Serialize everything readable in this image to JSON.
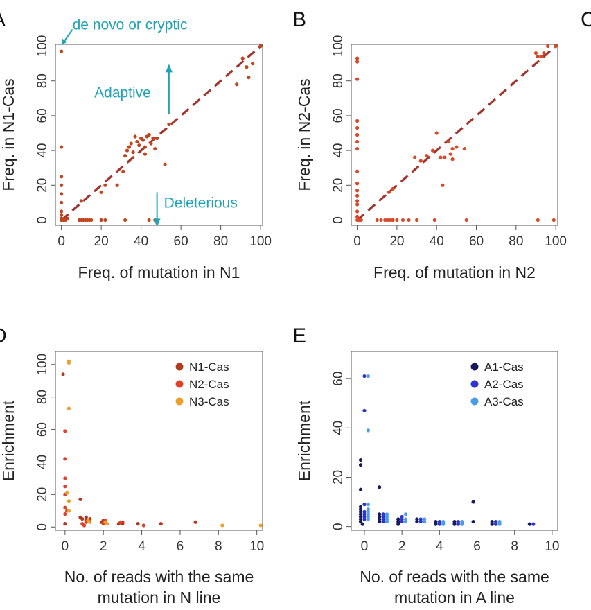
{
  "chart_data": [
    {
      "panel": "A",
      "type": "scatter",
      "xlabel": "Freq. of mutation in N1",
      "ylabel": "Freq. in N1-Cas",
      "xlim": [
        -3,
        101
      ],
      "ylim": [
        -3,
        101
      ],
      "xticks": [
        0,
        20,
        40,
        60,
        80,
        100
      ],
      "yticks": [
        0,
        20,
        40,
        60,
        80,
        100
      ],
      "diagonal": true,
      "colors": {
        "points": "#c0451f",
        "diagonal": "#a3332b",
        "annotation": "#22a3b5"
      },
      "annotations": [
        {
          "text": "de novo or cryptic",
          "arrow": "down-left",
          "at": [
            0,
            100
          ]
        },
        {
          "text": "Adaptive",
          "arrow": "up",
          "at": [
            54,
            61
          ]
        },
        {
          "text": "Deleterious",
          "arrow": "down",
          "at": [
            48,
            16
          ]
        }
      ],
      "points": [
        [
          0,
          97
        ],
        [
          0,
          42
        ],
        [
          0,
          25
        ],
        [
          0,
          20
        ],
        [
          0,
          15
        ],
        [
          0,
          10
        ],
        [
          0,
          5
        ],
        [
          0,
          3
        ],
        [
          0,
          1
        ],
        [
          0,
          0
        ],
        [
          1,
          0
        ],
        [
          2,
          0
        ],
        [
          3,
          1
        ],
        [
          9,
          0
        ],
        [
          10,
          0
        ],
        [
          11,
          0
        ],
        [
          12,
          0
        ],
        [
          13,
          0
        ],
        [
          14,
          0
        ],
        [
          15,
          0
        ],
        [
          20,
          0
        ],
        [
          22,
          0
        ],
        [
          32,
          0
        ],
        [
          44,
          0
        ],
        [
          47,
          0
        ],
        [
          10,
          11
        ],
        [
          20,
          16
        ],
        [
          22,
          20
        ],
        [
          28,
          20
        ],
        [
          31,
          28
        ],
        [
          32,
          37
        ],
        [
          33,
          40
        ],
        [
          34,
          42
        ],
        [
          35,
          44
        ],
        [
          36,
          39
        ],
        [
          37,
          48
        ],
        [
          38,
          45
        ],
        [
          39,
          43
        ],
        [
          40,
          47
        ],
        [
          41,
          46
        ],
        [
          42,
          42
        ],
        [
          43,
          48
        ],
        [
          44,
          49
        ],
        [
          45,
          44
        ],
        [
          46,
          47
        ],
        [
          47,
          41
        ],
        [
          48,
          47
        ],
        [
          42,
          38
        ],
        [
          52,
          32
        ],
        [
          54,
          55
        ],
        [
          88,
          78
        ],
        [
          91,
          93
        ],
        [
          93,
          88
        ],
        [
          94,
          82
        ],
        [
          96,
          90
        ],
        [
          100,
          100
        ]
      ]
    },
    {
      "panel": "B",
      "type": "scatter",
      "xlabel": "Freq. of mutation in N2",
      "ylabel": "Freq. in N2-Cas",
      "xlim": [
        -3,
        101
      ],
      "ylim": [
        -3,
        101
      ],
      "xticks": [
        0,
        20,
        40,
        60,
        80,
        100
      ],
      "yticks": [
        0,
        20,
        40,
        60,
        80,
        100
      ],
      "diagonal": true,
      "colors": {
        "points": "#d8492a",
        "diagonal": "#a3332b"
      },
      "points": [
        [
          0,
          93
        ],
        [
          0,
          91
        ],
        [
          0,
          81
        ],
        [
          0,
          57
        ],
        [
          0,
          53
        ],
        [
          0,
          49
        ],
        [
          0,
          45
        ],
        [
          0,
          41
        ],
        [
          0,
          28
        ],
        [
          0,
          21
        ],
        [
          0,
          17
        ],
        [
          0,
          14
        ],
        [
          0,
          11
        ],
        [
          0,
          9
        ],
        [
          0,
          5
        ],
        [
          0,
          2
        ],
        [
          0,
          0
        ],
        [
          1,
          0
        ],
        [
          2,
          0
        ],
        [
          10,
          0
        ],
        [
          12,
          0
        ],
        [
          14,
          0
        ],
        [
          15,
          0
        ],
        [
          16,
          0
        ],
        [
          17,
          0
        ],
        [
          18,
          0
        ],
        [
          20,
          0
        ],
        [
          23,
          0
        ],
        [
          26,
          0
        ],
        [
          30,
          0
        ],
        [
          39,
          0
        ],
        [
          55,
          0
        ],
        [
          91,
          0
        ],
        [
          99,
          0
        ],
        [
          16,
          16
        ],
        [
          18,
          18
        ],
        [
          29,
          36
        ],
        [
          32,
          34
        ],
        [
          35,
          37
        ],
        [
          38,
          40
        ],
        [
          40,
          50
        ],
        [
          42,
          36
        ],
        [
          43,
          20
        ],
        [
          44,
          36
        ],
        [
          46,
          45
        ],
        [
          47,
          38
        ],
        [
          48,
          41
        ],
        [
          48,
          35
        ],
        [
          50,
          42
        ],
        [
          54,
          41
        ],
        [
          90,
          96
        ],
        [
          91,
          94
        ],
        [
          93,
          94
        ],
        [
          94,
          96
        ],
        [
          96,
          100
        ],
        [
          100,
          100
        ]
      ]
    },
    {
      "panel": "D",
      "type": "scatter",
      "xlabel": "No. of reads with the same\nmutation in N line",
      "ylabel": "Enrichment",
      "xlim": [
        -0.5,
        10.3
      ],
      "ylim": [
        -2,
        108
      ],
      "xticks": [
        0,
        2,
        4,
        6,
        8,
        10
      ],
      "yticks": [
        0,
        20,
        40,
        60,
        80,
        100
      ],
      "legend_position": "top-right",
      "series": [
        {
          "name": "N1-Cas",
          "color": "#b23a1c",
          "points": [
            [
              -0.1,
              94
            ],
            [
              0,
              2
            ],
            [
              0.8,
              17
            ],
            [
              0.8,
              6
            ],
            [
              0.9,
              5
            ],
            [
              1.1,
              6
            ],
            [
              1.1,
              4
            ],
            [
              1.3,
              5
            ],
            [
              1.9,
              3
            ],
            [
              2.0,
              4
            ],
            [
              2.1,
              3
            ],
            [
              2.8,
              2
            ],
            [
              3.0,
              3
            ],
            [
              3.0,
              2
            ],
            [
              3.8,
              2
            ],
            [
              5.0,
              2
            ],
            [
              6.8,
              3
            ]
          ]
        },
        {
          "name": "N2-Cas",
          "color": "#e0412b",
          "points": [
            [
              0,
              59
            ],
            [
              0,
              42
            ],
            [
              0,
              30
            ],
            [
              0,
              25
            ],
            [
              0,
              20
            ],
            [
              0,
              12
            ],
            [
              0,
              8
            ],
            [
              0.1,
              10
            ],
            [
              0.9,
              2
            ],
            [
              1.0,
              1
            ],
            [
              1.1,
              3
            ],
            [
              2.0,
              2
            ],
            [
              2.1,
              4
            ],
            [
              2.9,
              3
            ],
            [
              4.1,
              1
            ]
          ]
        },
        {
          "name": "N3-Cas",
          "color": "#eba02a",
          "points": [
            [
              0.2,
              102
            ],
            [
              0.2,
              101
            ],
            [
              0.2,
              73
            ],
            [
              0.1,
              21
            ],
            [
              0.2,
              16
            ],
            [
              0.2,
              10
            ],
            [
              1.2,
              4
            ],
            [
              1.3,
              3
            ],
            [
              2.1,
              3
            ],
            [
              2.2,
              2
            ],
            [
              8.2,
              1
            ],
            [
              10.2,
              1
            ]
          ]
        }
      ]
    },
    {
      "panel": "E",
      "type": "scatter",
      "xlabel": "No. of reads with the same\nmutation in A line",
      "ylabel": "Enrichment",
      "xlim": [
        -0.7,
        10.3
      ],
      "ylim": [
        -1.5,
        71
      ],
      "xticks": [
        0,
        2,
        4,
        6,
        8,
        10
      ],
      "yticks": [
        0,
        20,
        40,
        60
      ],
      "legend_position": "top-right",
      "series": [
        {
          "name": "A1-Cas",
          "color": "#141a5c",
          "points": [
            [
              -0.2,
              27
            ],
            [
              -0.2,
              25
            ],
            [
              -0.2,
              15
            ],
            [
              -0.2,
              8
            ],
            [
              -0.2,
              7
            ],
            [
              -0.2,
              6
            ],
            [
              -0.2,
              5
            ],
            [
              -0.2,
              4
            ],
            [
              -0.2,
              3
            ],
            [
              -0.2,
              2
            ],
            [
              -0.1,
              1
            ],
            [
              0.8,
              16
            ],
            [
              0.8,
              5
            ],
            [
              0.8,
              4
            ],
            [
              0.8,
              3
            ],
            [
              0.8,
              2
            ],
            [
              1.8,
              3
            ],
            [
              1.8,
              2
            ],
            [
              1.8,
              1
            ],
            [
              2.8,
              3
            ],
            [
              2.8,
              2
            ],
            [
              3.8,
              2
            ],
            [
              3.8,
              1
            ],
            [
              4.8,
              2
            ],
            [
              4.8,
              1
            ],
            [
              5.8,
              10
            ],
            [
              5.8,
              2
            ],
            [
              6.8,
              2
            ],
            [
              6.8,
              1
            ],
            [
              8.8,
              1
            ]
          ]
        },
        {
          "name": "A2-Cas",
          "color": "#3034cf",
          "points": [
            [
              0,
              61
            ],
            [
              0,
              47
            ],
            [
              0,
              9
            ],
            [
              0,
              6
            ],
            [
              0,
              5
            ],
            [
              0,
              4
            ],
            [
              0,
              3
            ],
            [
              1.0,
              5
            ],
            [
              1.0,
              4
            ],
            [
              1.0,
              3
            ],
            [
              1.0,
              2
            ],
            [
              2.0,
              4
            ],
            [
              2.0,
              3
            ],
            [
              2.0,
              2
            ],
            [
              3.0,
              3
            ],
            [
              3.0,
              2
            ],
            [
              4.0,
              2
            ],
            [
              4.0,
              1
            ],
            [
              5.0,
              2
            ],
            [
              5.0,
              1
            ],
            [
              7.0,
              2
            ],
            [
              7.0,
              1
            ],
            [
              9.0,
              1
            ]
          ]
        },
        {
          "name": "A3-Cas",
          "color": "#4a9be8",
          "points": [
            [
              0.2,
              61
            ],
            [
              0.2,
              39
            ],
            [
              0.2,
              9
            ],
            [
              0.2,
              7
            ],
            [
              0.2,
              6
            ],
            [
              0.2,
              5
            ],
            [
              0.2,
              4
            ],
            [
              0.2,
              3
            ],
            [
              1.2,
              5
            ],
            [
              1.2,
              4
            ],
            [
              1.2,
              3
            ],
            [
              1.2,
              2
            ],
            [
              2.2,
              5
            ],
            [
              2.2,
              3
            ],
            [
              2.2,
              2
            ],
            [
              3.2,
              3
            ],
            [
              3.2,
              2
            ],
            [
              4.2,
              2
            ],
            [
              4.2,
              1
            ],
            [
              5.2,
              2
            ],
            [
              5.2,
              1
            ],
            [
              7.2,
              2
            ],
            [
              7.2,
              1
            ]
          ]
        }
      ]
    }
  ]
}
